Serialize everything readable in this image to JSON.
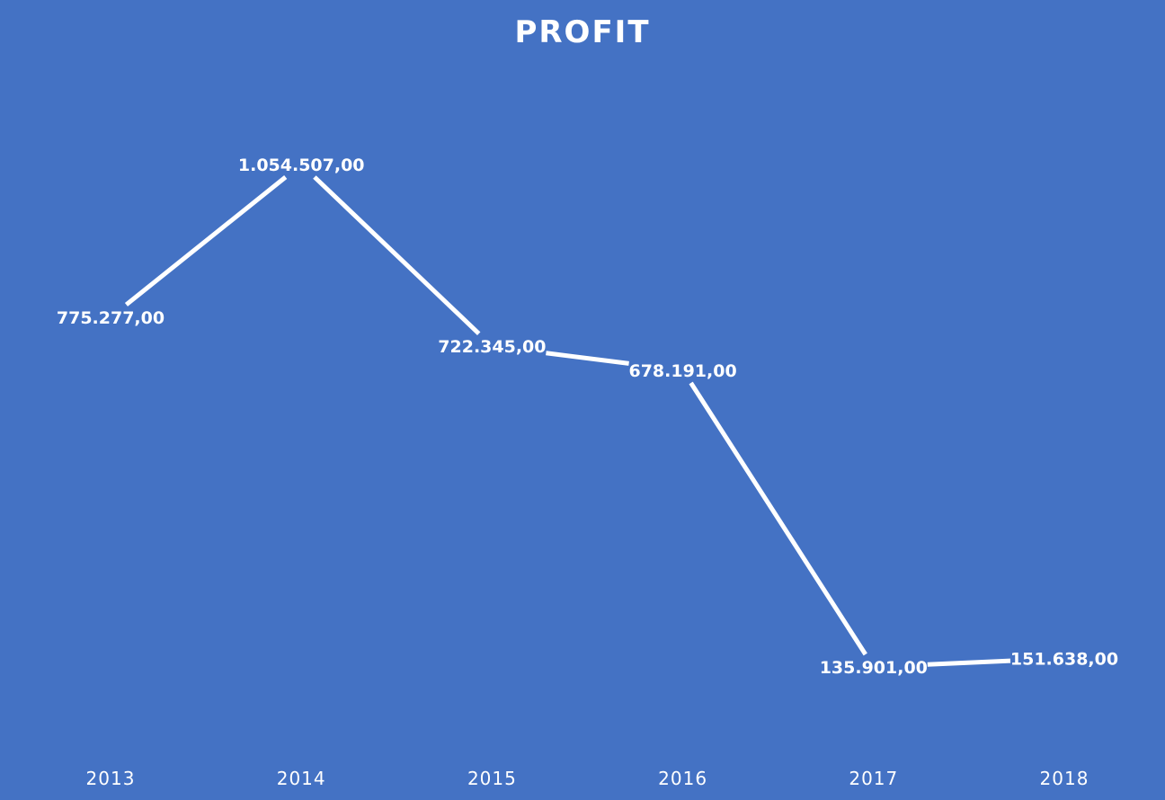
{
  "chart_data": {
    "type": "line",
    "title": "PROFIT",
    "xlabel": "",
    "ylabel": "",
    "categories": [
      "2013",
      "2014",
      "2015",
      "2016",
      "2017",
      "2018"
    ],
    "series": [
      {
        "values": [
          775277,
          1054507,
          722345,
          678191,
          135901,
          151638
        ],
        "labels": [
          "775.277,00",
          "1.054.507,00",
          "722.345,00",
          "678.191,00",
          "135.901,00",
          "151.638,00"
        ]
      }
    ],
    "ylim": [
      0,
      1054507
    ],
    "grid": false,
    "legend": "none",
    "drop_lines": true,
    "colors": {
      "background": "#4472c4",
      "line": "#ffffff",
      "text": "#ffffff"
    }
  }
}
